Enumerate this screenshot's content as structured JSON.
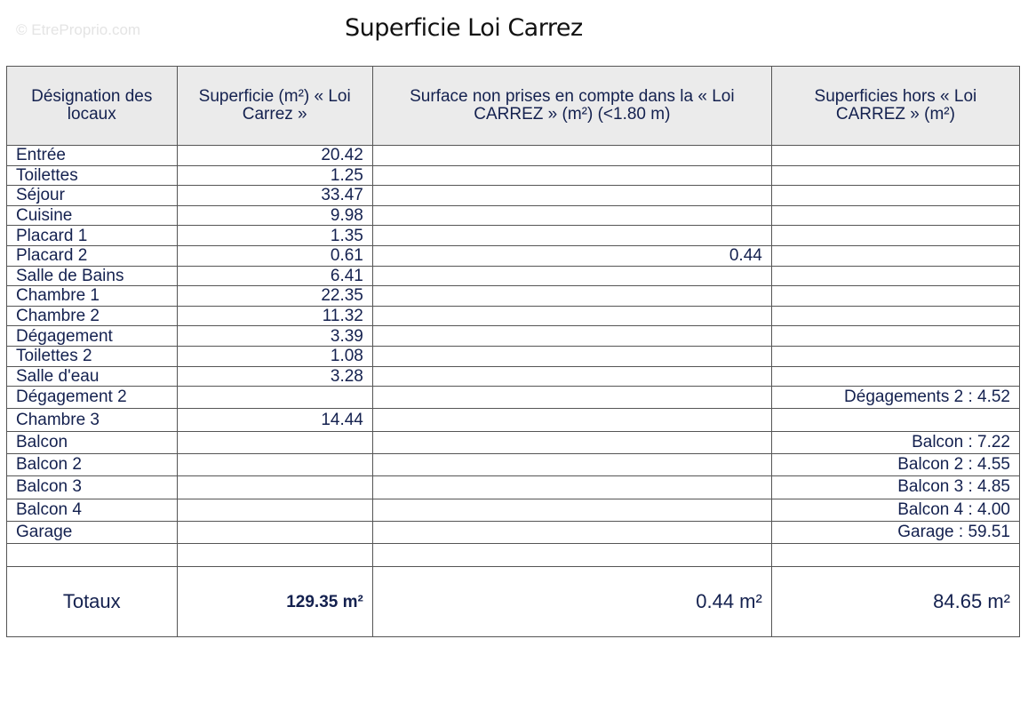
{
  "watermark": "© EtreProprio.com",
  "title": "Superficie Loi Carrez",
  "headers": [
    "Désignation des locaux",
    "Superficie (m²) « Loi Carrez »",
    "Surface non prises en compte dans la « Loi CARREZ » (m²) (<1.80 m)",
    "Superficies hors « Loi CARREZ » (m²)"
  ],
  "rows": [
    [
      "Entrée",
      "20.42",
      "",
      ""
    ],
    [
      "Toilettes",
      "1.25",
      "",
      ""
    ],
    [
      "Séjour",
      "33.47",
      "",
      ""
    ],
    [
      "Cuisine",
      "9.98",
      "",
      ""
    ],
    [
      "Placard 1",
      "1.35",
      "",
      ""
    ],
    [
      "Placard 2",
      "0.61",
      "0.44",
      ""
    ],
    [
      "Salle de Bains",
      "6.41",
      "",
      ""
    ],
    [
      "Chambre 1",
      "22.35",
      "",
      ""
    ],
    [
      "Chambre 2",
      "11.32",
      "",
      ""
    ],
    [
      "Dégagement",
      "3.39",
      "",
      ""
    ],
    [
      "Toilettes 2",
      "1.08",
      "",
      ""
    ],
    [
      "Salle d'eau",
      "3.28",
      "",
      ""
    ],
    [
      "Dégagement 2",
      "",
      "",
      "Dégagements 2 : 4.52"
    ],
    [
      "Chambre 3",
      "14.44",
      "",
      ""
    ],
    [
      "Balcon",
      "",
      "",
      "Balcon : 7.22"
    ],
    [
      "Balcon 2",
      "",
      "",
      "Balcon 2 : 4.55"
    ],
    [
      "Balcon 3",
      "",
      "",
      "Balcon 3 : 4.85"
    ],
    [
      "Balcon 4",
      "",
      "",
      "Balcon 4 : 4.00"
    ],
    [
      "Garage",
      "",
      "",
      "Garage : 59.51"
    ],
    [
      "",
      "",
      "",
      ""
    ]
  ],
  "totals": [
    "Totaux",
    "129.35 m²",
    "0.44 m²",
    "84.65 m²"
  ]
}
